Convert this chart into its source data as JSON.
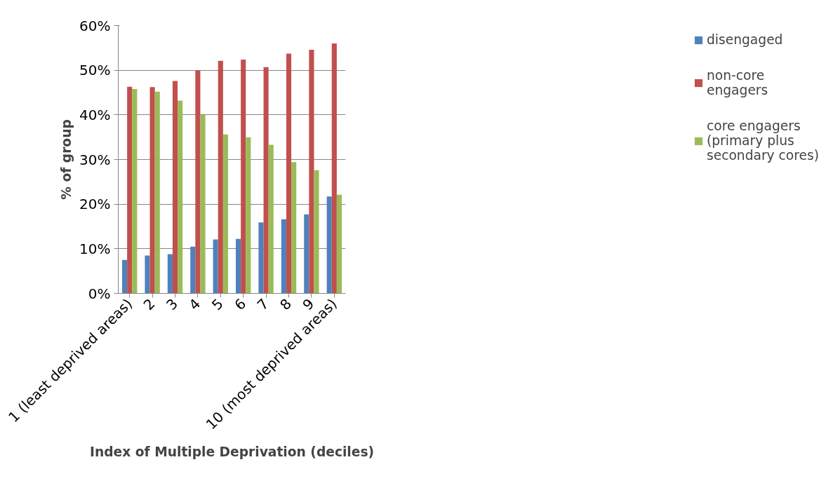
{
  "chart_data": {
    "type": "bar",
    "xlabel": "Index of Multiple Deprivation (deciles)",
    "ylabel": "% of group",
    "categories": [
      "1 (least deprived areas)",
      "2",
      "3",
      "4",
      "5",
      "6",
      "7",
      "8",
      "9",
      "10 (most deprived areas)"
    ],
    "series": [
      {
        "name": "disengaged",
        "color": "#4f81bd",
        "values": [
          7.5,
          8.5,
          8.8,
          10.5,
          12.1,
          12.2,
          15.9,
          16.6,
          17.7,
          21.7
        ]
      },
      {
        "name": "non-core engagers",
        "color": "#c0504d",
        "values": [
          46.3,
          46.2,
          47.6,
          49.9,
          52.1,
          52.4,
          50.7,
          53.7,
          54.6,
          56.0
        ]
      },
      {
        "name": "core engagers (primary plus secondary cores)",
        "color": "#9bbb59",
        "values": [
          45.8,
          45.2,
          43.2,
          40.0,
          35.6,
          35.0,
          33.3,
          29.4,
          27.6,
          22.1
        ]
      }
    ],
    "ylim": [
      0,
      60
    ],
    "yticks": [
      {
        "value": 0,
        "label": "0%"
      },
      {
        "value": 10,
        "label": "10%"
      },
      {
        "value": 20,
        "label": "20%"
      },
      {
        "value": 30,
        "label": "30%"
      },
      {
        "value": 40,
        "label": "40%"
      },
      {
        "value": 50,
        "label": "50%"
      },
      {
        "value": 60,
        "label": "60%"
      }
    ],
    "grid": "y",
    "legend": "right"
  }
}
